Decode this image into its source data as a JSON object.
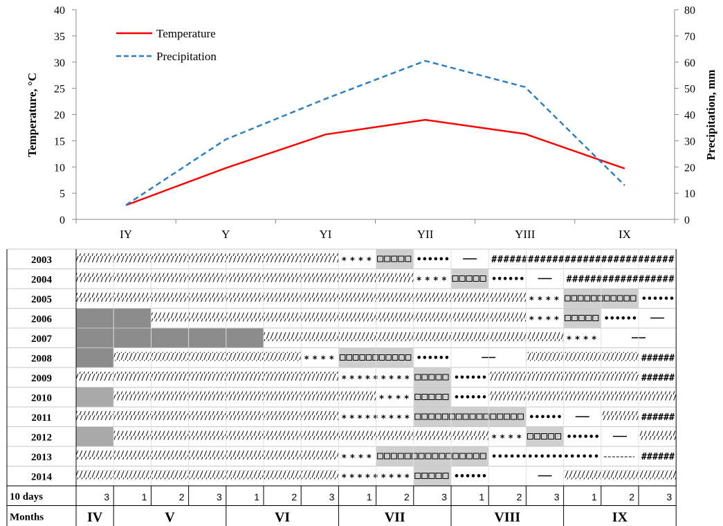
{
  "chart_data": {
    "type": "line",
    "categories": [
      "IY",
      "Y",
      "YI",
      "YII",
      "YIII",
      "IX"
    ],
    "series": [
      {
        "name": "Temperature",
        "axis": "left",
        "color": "#ff0000",
        "dash": "solid",
        "values": [
          2.7,
          9.8,
          16.2,
          19.0,
          16.3,
          9.7
        ]
      },
      {
        "name": "Precipitation",
        "axis": "right",
        "color": "#2a7fc4",
        "dash": "dashed",
        "values": [
          5.5,
          30.5,
          46.0,
          60.5,
          50.5,
          13.0
        ]
      }
    ],
    "ylabel_left": "Temperature, °C",
    "ylabel_right": "Precipitation,  mm",
    "ylim_left": [
      0,
      40
    ],
    "ylim_right": [
      0,
      80
    ],
    "yticks_left": [
      "0",
      "5",
      "10",
      "15",
      "20",
      "25",
      "30",
      "35",
      "40"
    ],
    "yticks_right": [
      "0",
      "10",
      "20",
      "30",
      "40",
      "50",
      "60",
      "70",
      "80"
    ],
    "legend_position": "top-left",
    "grid": false
  },
  "phenology_table": {
    "years": [
      "2003",
      "2004",
      "2005",
      "2006",
      "2007",
      "2008",
      "2009",
      "2010",
      "2011",
      "2012",
      "2013",
      "2014"
    ],
    "ten_days_label": "10 days",
    "ten_days": [
      "3",
      "1",
      "2",
      "3",
      "1",
      "2",
      "3",
      "1",
      "2",
      "3",
      "1",
      "2",
      "3",
      "1",
      "2",
      "3"
    ],
    "months_label": "Months",
    "months": [
      {
        "label": "IV",
        "span": 1
      },
      {
        "label": "V",
        "span": 3
      },
      {
        "label": "VI",
        "span": 3
      },
      {
        "label": "VII",
        "span": 3
      },
      {
        "label": "VIII",
        "span": 3
      },
      {
        "label": "IX",
        "span": 3
      }
    ],
    "rows": [
      [
        [
          "hatch",
          0,
          7
        ],
        [
          "stars",
          7,
          8
        ],
        [
          "boxes",
          8,
          9
        ],
        [
          "dots",
          9,
          10
        ],
        [
          "dash",
          10,
          11
        ],
        [
          "hash",
          11,
          16
        ]
      ],
      [
        [
          "hatch",
          0,
          9
        ],
        [
          "stars",
          9,
          10
        ],
        [
          "boxes",
          10,
          11
        ],
        [
          "dots",
          11,
          12
        ],
        [
          "dash",
          12,
          13
        ],
        [
          "hash",
          13,
          16
        ]
      ],
      [
        [
          "hatch",
          0,
          12
        ],
        [
          "stars",
          12,
          13
        ],
        [
          "boxes",
          13,
          15
        ],
        [
          "dots",
          15,
          16
        ]
      ],
      [
        [
          "gray",
          0,
          2
        ],
        [
          "hatch",
          2,
          12
        ],
        [
          "stars",
          12,
          13
        ],
        [
          "boxes",
          13,
          14
        ],
        [
          "dots",
          14,
          15
        ],
        [
          "dash",
          15,
          16
        ]
      ],
      [
        [
          "gray",
          0,
          5
        ],
        [
          "hatch",
          5,
          13
        ],
        [
          "stars",
          13,
          14
        ],
        [
          "dash",
          14,
          16
        ]
      ],
      [
        [
          "gray",
          0,
          1
        ],
        [
          "hatch",
          1,
          6
        ],
        [
          "stars",
          6,
          7
        ],
        [
          "boxes",
          7,
          9
        ],
        [
          "dots",
          9,
          10
        ],
        [
          "dash",
          10,
          12
        ],
        [
          "hatch",
          12,
          15
        ],
        [
          "hash",
          15,
          16
        ]
      ],
      [
        [
          "hatch",
          0,
          7
        ],
        [
          "stars",
          7,
          9
        ],
        [
          "boxes",
          9,
          10
        ],
        [
          "dots",
          10,
          11
        ],
        [
          "hatch",
          11,
          15
        ],
        [
          "hash",
          15,
          16
        ]
      ],
      [
        [
          "graylight",
          0,
          1
        ],
        [
          "hatch",
          1,
          8
        ],
        [
          "stars",
          8,
          9
        ],
        [
          "boxes",
          9,
          10
        ],
        [
          "dots",
          10,
          11
        ],
        [
          "hatch",
          11,
          16
        ]
      ],
      [
        [
          "hatch",
          0,
          7
        ],
        [
          "stars",
          7,
          9
        ],
        [
          "boxes",
          9,
          12
        ],
        [
          "dots",
          12,
          13
        ],
        [
          "dash",
          13,
          14
        ],
        [
          "hatch",
          14,
          15
        ],
        [
          "hash",
          15,
          16
        ]
      ],
      [
        [
          "graylight",
          0,
          1
        ],
        [
          "hatch",
          1,
          11
        ],
        [
          "stars",
          11,
          12
        ],
        [
          "boxes",
          12,
          13
        ],
        [
          "dots",
          13,
          14
        ],
        [
          "dash",
          14,
          15
        ],
        [
          "hatch",
          15,
          16
        ]
      ],
      [
        [
          "hatch",
          0,
          7
        ],
        [
          "stars",
          7,
          8
        ],
        [
          "boxes",
          8,
          11
        ],
        [
          "dots",
          11,
          14
        ],
        [
          "dashs",
          14,
          15
        ],
        [
          "hash",
          15,
          16
        ]
      ],
      [
        [
          "hatch",
          0,
          7
        ],
        [
          "stars",
          7,
          9
        ],
        [
          "boxes",
          9,
          10
        ],
        [
          "dots",
          10,
          11
        ],
        [
          "dash",
          12,
          13
        ],
        [
          "hatch",
          13,
          16
        ]
      ]
    ]
  }
}
